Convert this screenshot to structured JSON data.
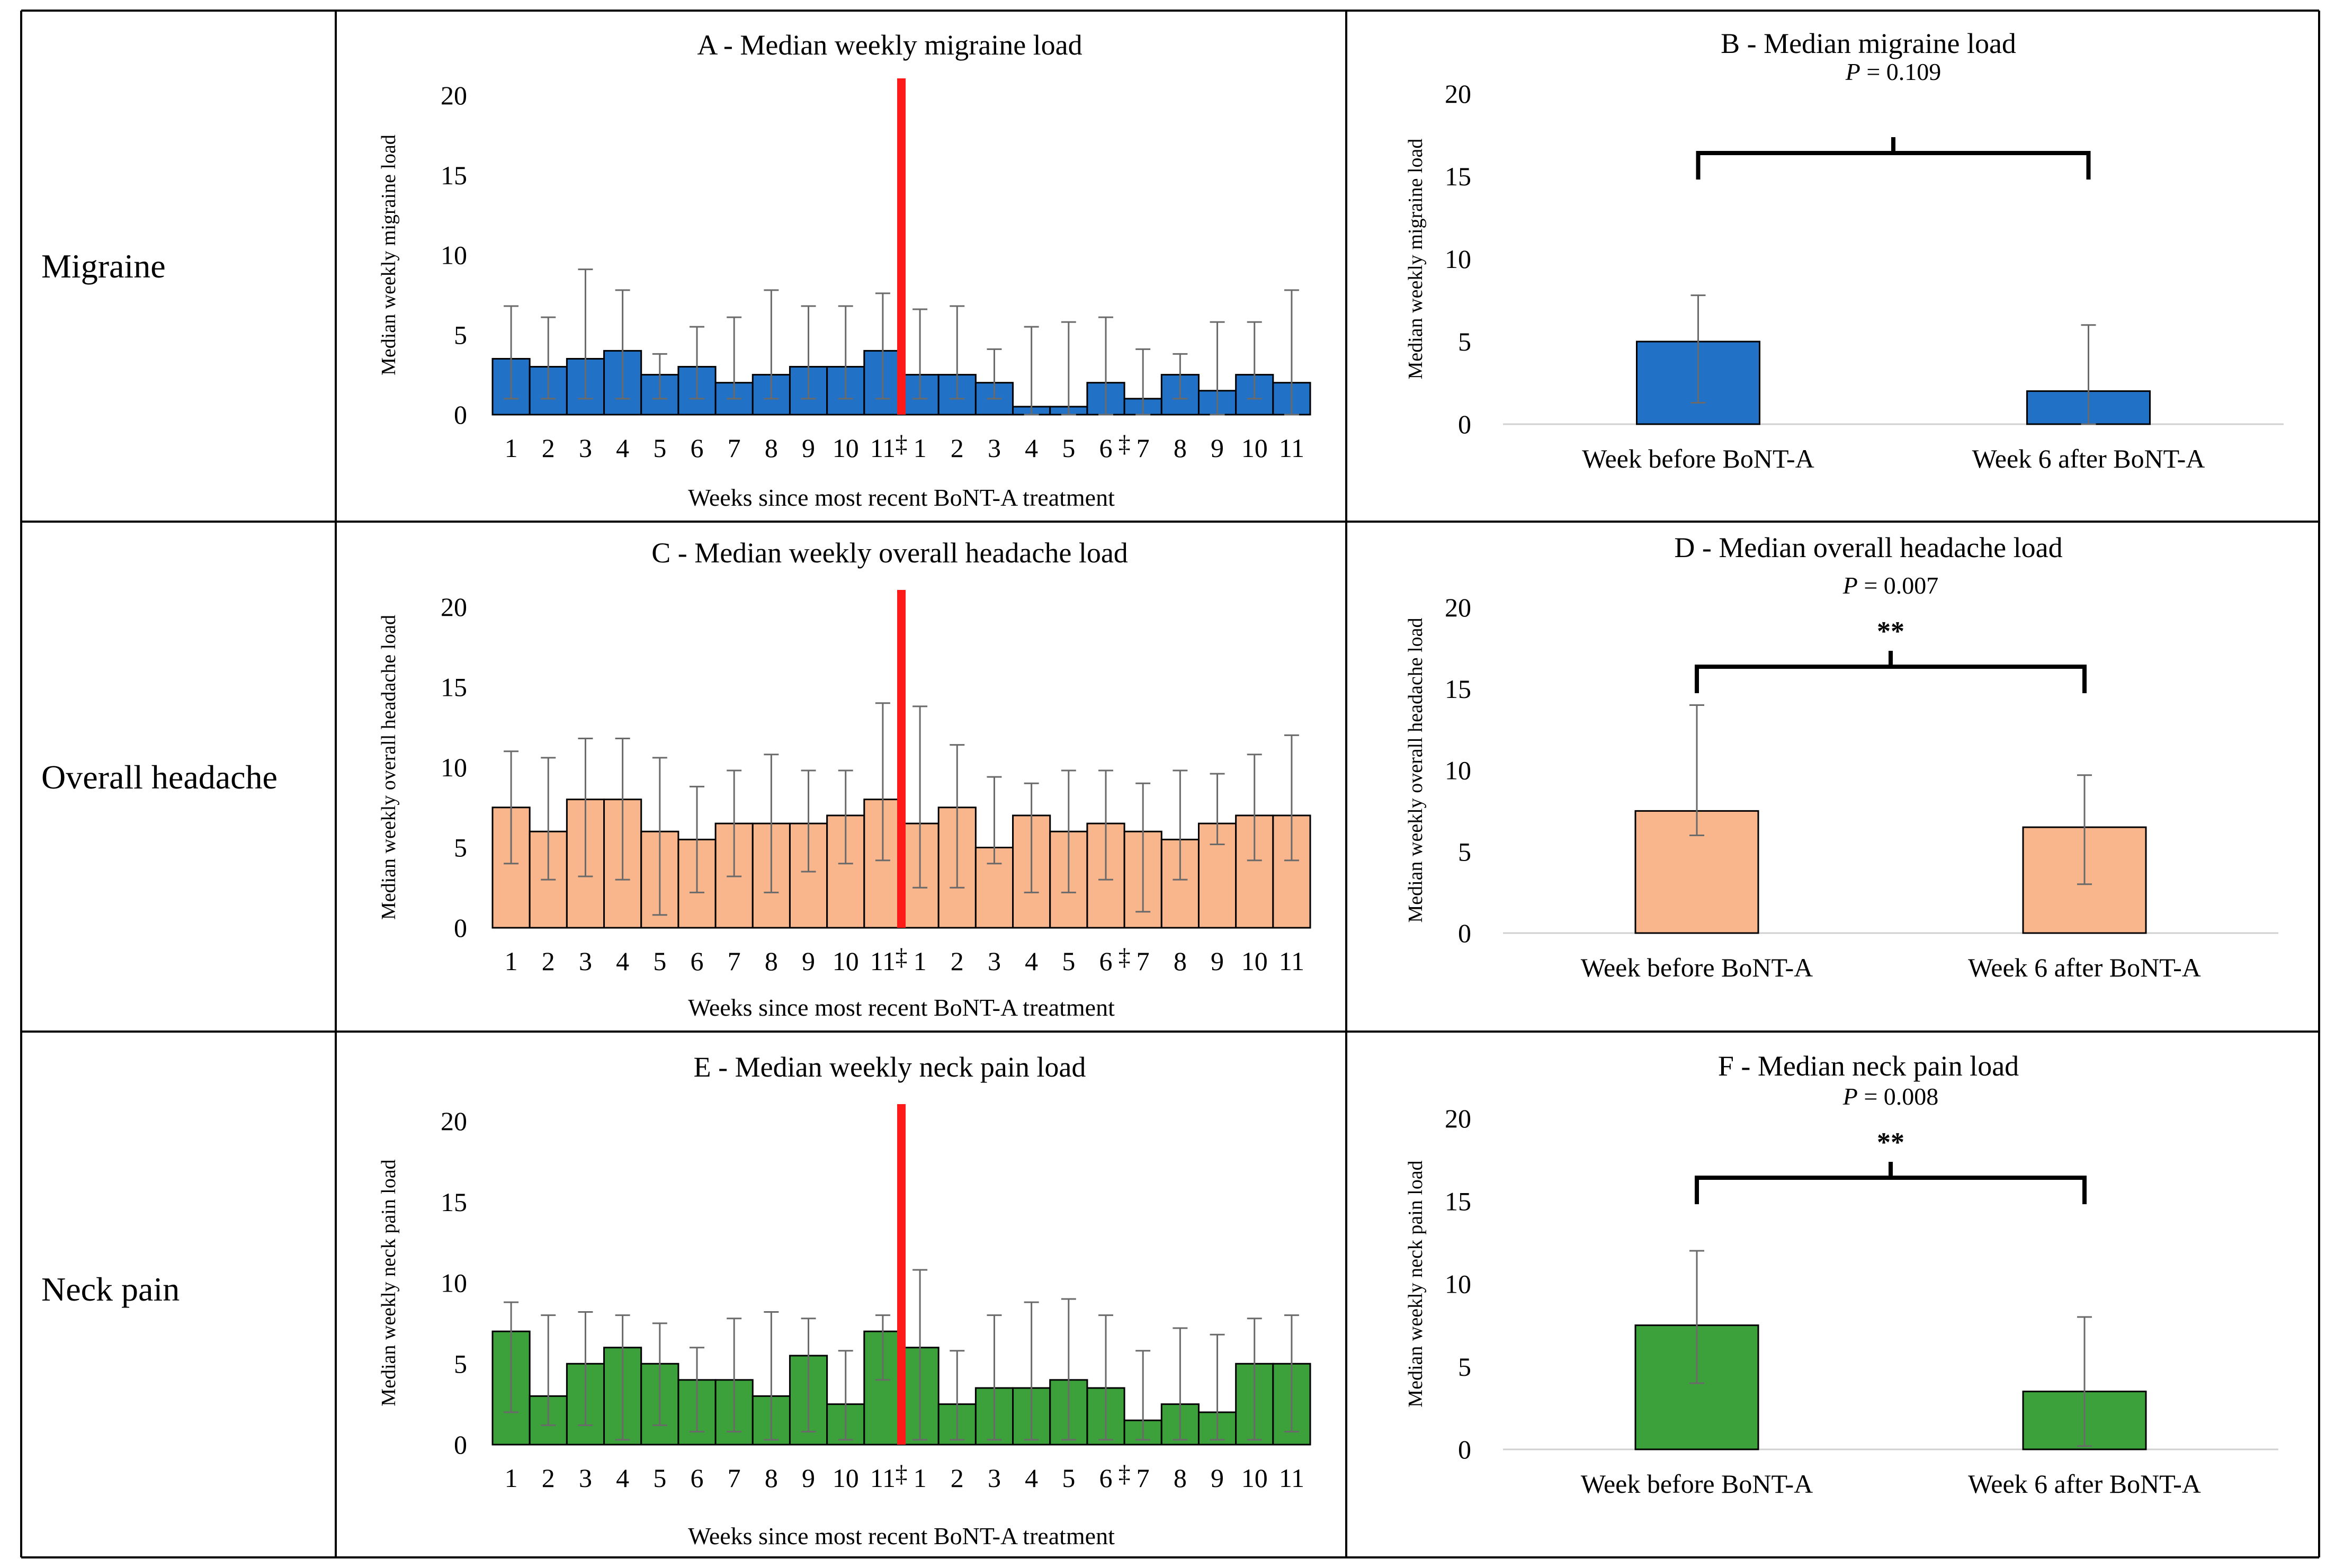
{
  "row_labels": [
    "Migraine",
    "Overall headache",
    "Neck pain"
  ],
  "colors": {
    "migraine": "#2172c7",
    "headache": "#f9b58b",
    "neck": "#3ca13b",
    "treatment_line": "#ff1a1a",
    "error_bar": "#6a6a6a"
  },
  "chart_data": [
    {
      "id": "A",
      "type": "bar",
      "title": "A - Median weekly migraine load",
      "xlabel": "Weeks since most recent BoNT-A treatment",
      "ylabel": "Median weekly migraine load",
      "ylim": [
        0,
        20
      ],
      "yticks": [
        "0",
        "5",
        "10",
        "15",
        "20"
      ],
      "categories": [
        "1",
        "2",
        "3",
        "4",
        "5",
        "6",
        "7",
        "8",
        "9",
        "10",
        "11",
        "1",
        "2",
        "3",
        "4",
        "5",
        "6",
        "7",
        "8",
        "9",
        "10",
        "11"
      ],
      "values": [
        3.5,
        3,
        3.5,
        4,
        2.5,
        3,
        2,
        2.5,
        3,
        3,
        4,
        2.5,
        2.5,
        2,
        0.5,
        0.5,
        2,
        1,
        2.5,
        1.5,
        2.5,
        2
      ],
      "err_low": [
        1,
        1,
        1,
        1,
        1,
        1,
        1,
        1,
        1,
        1,
        1,
        1,
        1,
        1,
        0,
        0,
        0,
        0,
        1,
        0,
        1,
        0
      ],
      "err_high": [
        6.8,
        6.1,
        9.1,
        7.8,
        3.8,
        5.5,
        6.1,
        7.8,
        6.8,
        6.8,
        7.6,
        6.6,
        6.8,
        4.1,
        5.5,
        5.8,
        6.1,
        4.1,
        3.8,
        5.8,
        5.8,
        7.8
      ],
      "treatment_after_index": 10,
      "dagger_mark": "‡",
      "dagger_after_indices": [
        10,
        16
      ],
      "color_key": "migraine"
    },
    {
      "id": "B",
      "type": "bar",
      "title": "B - Median migraine load",
      "ylabel": "Median weekly migraine load",
      "ylim": [
        0,
        20
      ],
      "yticks": [
        "0",
        "5",
        "10",
        "15",
        "20"
      ],
      "categories": [
        "Week before BoNT-A",
        "Week 6 after BoNT-A"
      ],
      "values": [
        5,
        2
      ],
      "err_low": [
        1.3,
        0
      ],
      "err_high": [
        7.8,
        6
      ],
      "p_value_prefix": "P",
      "p_value_rest": " = 0.109",
      "significance": "",
      "color_key": "migraine"
    },
    {
      "id": "C",
      "type": "bar",
      "title": "C - Median weekly overall headache load",
      "xlabel": "Weeks since most recent BoNT-A treatment",
      "ylabel": "Median weekly overall headache load",
      "ylim": [
        0,
        20
      ],
      "yticks": [
        "0",
        "5",
        "10",
        "15",
        "20"
      ],
      "categories": [
        "1",
        "2",
        "3",
        "4",
        "5",
        "6",
        "7",
        "8",
        "9",
        "10",
        "11",
        "1",
        "2",
        "3",
        "4",
        "5",
        "6",
        "7",
        "8",
        "9",
        "10",
        "11"
      ],
      "values": [
        7.5,
        6,
        8,
        8,
        6,
        5.5,
        6.5,
        6.5,
        6.5,
        7,
        8,
        6.5,
        7.5,
        5,
        7,
        6,
        6.5,
        6,
        5.5,
        6.5,
        7,
        7
      ],
      "err_low": [
        4,
        3,
        3.2,
        3,
        0.8,
        2.2,
        3.2,
        2.2,
        3.5,
        4,
        4.2,
        2.5,
        2.5,
        4,
        2.2,
        2.2,
        3,
        1,
        3,
        5.2,
        4.2,
        4.2
      ],
      "err_high": [
        11,
        10.6,
        11.8,
        11.8,
        10.6,
        8.8,
        9.8,
        10.8,
        9.8,
        9.8,
        14,
        13.8,
        11.4,
        9.4,
        9,
        9.8,
        9.8,
        9,
        9.8,
        9.6,
        10.8,
        12
      ],
      "treatment_after_index": 10,
      "dagger_mark": "‡",
      "dagger_after_indices": [
        10,
        16
      ],
      "color_key": "headache"
    },
    {
      "id": "D",
      "type": "bar",
      "title": "D - Median overall headache load",
      "ylabel": "Median weekly overall headache load",
      "ylim": [
        0,
        20
      ],
      "yticks": [
        "0",
        "5",
        "10",
        "15",
        "20"
      ],
      "categories": [
        "Week before BoNT-A",
        "Week 6 after BoNT-A"
      ],
      "values": [
        7.5,
        6.5
      ],
      "err_low": [
        6,
        3
      ],
      "err_high": [
        14,
        9.7
      ],
      "p_value_prefix": "P",
      "p_value_rest": " = 0.007",
      "significance": "**",
      "color_key": "headache"
    },
    {
      "id": "E",
      "type": "bar",
      "title": "E - Median weekly neck pain load",
      "xlabel": "Weeks since most recent BoNT-A treatment",
      "ylabel": "Median weekly neck pain load",
      "ylim": [
        0,
        20
      ],
      "yticks": [
        "0",
        "5",
        "10",
        "15",
        "20"
      ],
      "categories": [
        "1",
        "2",
        "3",
        "4",
        "5",
        "6",
        "7",
        "8",
        "9",
        "10",
        "11",
        "1",
        "2",
        "3",
        "4",
        "5",
        "6",
        "7",
        "8",
        "9",
        "10",
        "11"
      ],
      "values": [
        7,
        3,
        5,
        6,
        5,
        4,
        4,
        3,
        5.5,
        2.5,
        7,
        6,
        2.5,
        3.5,
        3.5,
        4,
        3.5,
        1.5,
        2.5,
        2,
        5,
        5
      ],
      "err_low": [
        2,
        1.2,
        1.2,
        0.3,
        1.2,
        0.8,
        0.8,
        0.3,
        0.8,
        0.3,
        4,
        0.3,
        0.3,
        0.3,
        0.3,
        0.3,
        0.3,
        0.3,
        0.3,
        0.3,
        0.3,
        0.8
      ],
      "err_high": [
        8.8,
        8,
        8.2,
        8,
        7.5,
        6,
        7.8,
        8.2,
        7.8,
        5.8,
        8,
        10.8,
        5.8,
        8,
        8.8,
        9,
        8,
        5.8,
        7.2,
        6.8,
        7.8,
        8
      ],
      "treatment_after_index": 10,
      "dagger_mark": "‡",
      "dagger_after_indices": [
        10,
        16
      ],
      "color_key": "neck"
    },
    {
      "id": "F",
      "type": "bar",
      "title": "F - Median neck pain load",
      "ylabel": "Median weekly neck pain load",
      "ylim": [
        0,
        20
      ],
      "yticks": [
        "0",
        "5",
        "10",
        "15",
        "20"
      ],
      "categories": [
        "Week before BoNT-A",
        "Week 6 after BoNT-A"
      ],
      "values": [
        7.5,
        3.5
      ],
      "err_low": [
        4,
        0.2
      ],
      "err_high": [
        12,
        8
      ],
      "p_value_prefix": "P",
      "p_value_rest": " = 0.008",
      "significance": "**",
      "color_key": "neck"
    }
  ]
}
